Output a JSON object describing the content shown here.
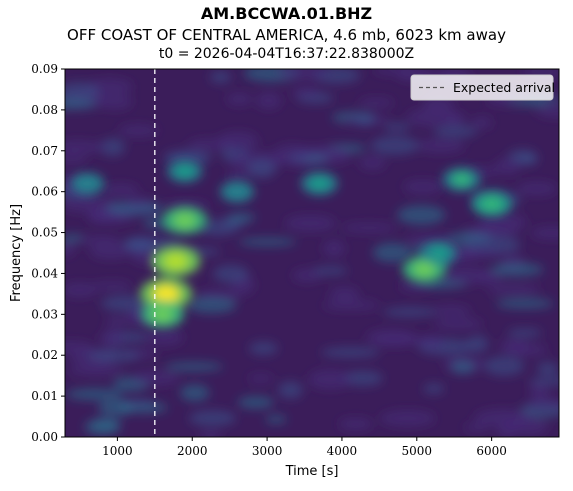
{
  "header": {
    "title": "AM.BCCWA.01.BHZ",
    "subtitle": "OFF COAST OF CENTRAL AMERICA, 4.6 mb, 6023 km away",
    "time_origin": "t0 = 2026-04-04T16:37:22.838000Z"
  },
  "chart_data": {
    "type": "heatmap",
    "title": "AM.BCCWA.01.BHZ",
    "xlabel": "Time [s]",
    "ylabel": "Frequency [Hz]",
    "xlim": [
      300,
      6900
    ],
    "ylim": [
      0.0,
      0.09
    ],
    "x_ticks": [
      1000,
      2000,
      3000,
      4000,
      5000,
      6000
    ],
    "x_tick_labels": [
      "1000",
      "2000",
      "3000",
      "4000",
      "5000",
      "6000"
    ],
    "y_ticks": [
      0.0,
      0.01,
      0.02,
      0.03,
      0.04,
      0.05,
      0.06,
      0.07,
      0.08,
      0.09
    ],
    "y_tick_labels": [
      "0.00",
      "0.01",
      "0.02",
      "0.03",
      "0.04",
      "0.05",
      "0.06",
      "0.07",
      "0.08",
      "0.09"
    ],
    "colormap": "viridis",
    "expected_arrival_time": 1500,
    "legend": {
      "label": "Expected arrival",
      "placement": "top-right"
    },
    "energy_features": [
      {
        "t": 1650,
        "f": 0.035,
        "amp": 1.0
      },
      {
        "t": 1780,
        "f": 0.043,
        "amp": 0.9
      },
      {
        "t": 1900,
        "f": 0.053,
        "amp": 0.75
      },
      {
        "t": 1600,
        "f": 0.03,
        "amp": 0.7
      },
      {
        "t": 5100,
        "f": 0.041,
        "amp": 0.7
      },
      {
        "t": 5300,
        "f": 0.045,
        "amp": 0.45
      },
      {
        "t": 5600,
        "f": 0.063,
        "amp": 0.5
      },
      {
        "t": 6000,
        "f": 0.057,
        "amp": 0.55
      },
      {
        "t": 3700,
        "f": 0.062,
        "amp": 0.45
      },
      {
        "t": 2600,
        "f": 0.06,
        "amp": 0.35
      },
      {
        "t": 600,
        "f": 0.062,
        "amp": 0.35
      },
      {
        "t": 1900,
        "f": 0.065,
        "amp": 0.4
      }
    ]
  }
}
